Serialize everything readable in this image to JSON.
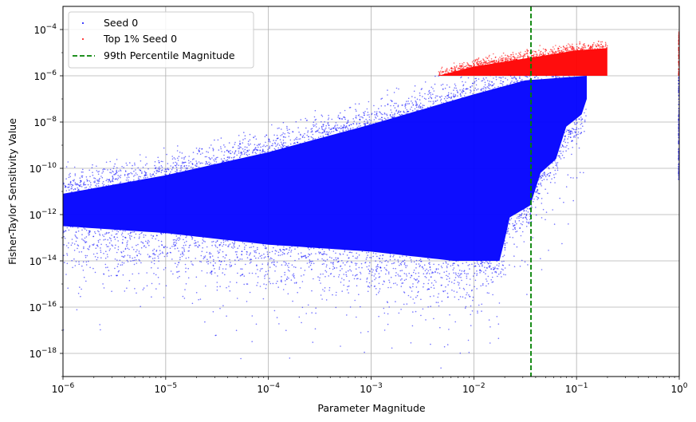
{
  "chart_data": {
    "type": "scatter",
    "title": "",
    "xlabel": "Parameter Magnitude",
    "ylabel": "Fisher-Taylor Sensitivity Value",
    "xscale": "log",
    "yscale": "log",
    "xlim": [
      1e-06,
      1
    ],
    "ylim": [
      1e-19,
      0.001
    ],
    "xticks": [
      {
        "value": 1e-06,
        "base": "10",
        "exp": "−6"
      },
      {
        "value": 1e-05,
        "base": "10",
        "exp": "−5"
      },
      {
        "value": 0.0001,
        "base": "10",
        "exp": "−4"
      },
      {
        "value": 0.001,
        "base": "10",
        "exp": "−3"
      },
      {
        "value": 0.01,
        "base": "10",
        "exp": "−2"
      },
      {
        "value": 0.1,
        "base": "10",
        "exp": "−1"
      },
      {
        "value": 1,
        "base": "10",
        "exp": "0"
      }
    ],
    "yticks": [
      {
        "value": 1e-18,
        "base": "10",
        "exp": "−18"
      },
      {
        "value": 1e-16,
        "base": "10",
        "exp": "−16"
      },
      {
        "value": 1e-14,
        "base": "10",
        "exp": "−14"
      },
      {
        "value": 1e-12,
        "base": "10",
        "exp": "−12"
      },
      {
        "value": 1e-10,
        "base": "10",
        "exp": "−10"
      },
      {
        "value": 1e-08,
        "base": "10",
        "exp": "−8"
      },
      {
        "value": 1e-06,
        "base": "10",
        "exp": "−6"
      },
      {
        "value": 0.0001,
        "base": "10",
        "exp": "−4"
      }
    ],
    "grid": true,
    "legend_position": "top-left",
    "series": [
      {
        "name": "Seed 0",
        "color": "#0000ff",
        "description_points": [
          [
            1e-06,
            1e-12
          ],
          [
            1e-05,
            1e-11
          ],
          [
            0.0001,
            1e-10
          ],
          [
            0.001,
            1e-09
          ],
          [
            0.01,
            1e-08
          ],
          [
            0.1,
            1e-07
          ]
        ]
      },
      {
        "name": "Top 1% Seed 0",
        "color": "#ff0000",
        "description_points": [
          [
            0.005,
            2e-06
          ],
          [
            0.02,
            5e-06
          ],
          [
            0.1,
            1e-05
          ],
          [
            0.2,
            3e-05
          ]
        ]
      }
    ],
    "reference_lines": [
      {
        "name": "99th Percentile Magnitude",
        "orientation": "vertical",
        "x": 0.036,
        "color": "#008000",
        "style": "dashed"
      }
    ]
  }
}
